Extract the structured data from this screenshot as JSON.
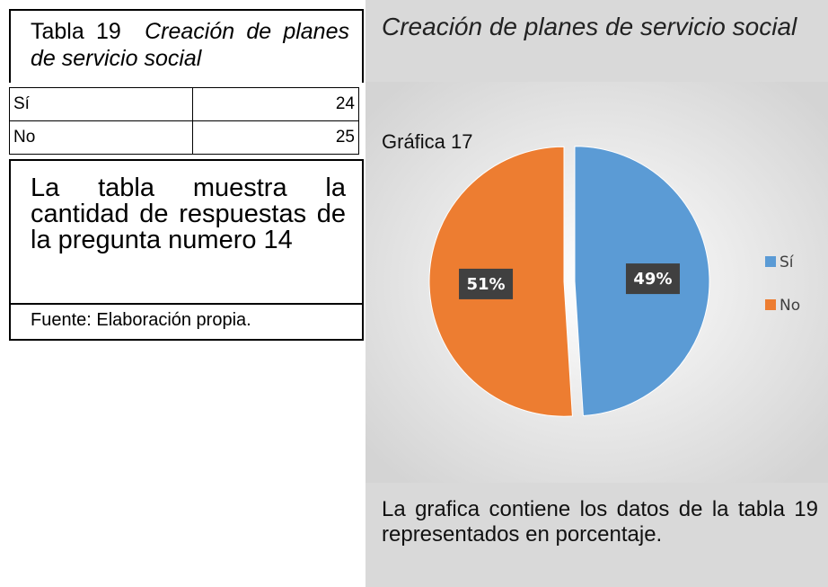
{
  "table": {
    "label": "Tabla 19",
    "title": "Creación de planes de servicio social",
    "rows": [
      [
        "Sí",
        24
      ],
      [
        "No",
        25
      ]
    ],
    "description": "La tabla muestra la cantidad de respuestas de la pregunta numero 14",
    "source": "Fuente: Elaboración propia."
  },
  "chart_data": {
    "type": "pie",
    "title": "Creación de planes de servicio social",
    "subtitle": "Gráfica 17",
    "categories": [
      "Sí",
      "No"
    ],
    "values": [
      49,
      51
    ],
    "value_labels": [
      "49%",
      "51%"
    ],
    "colors": [
      "#5b9bd5",
      "#ed7d31"
    ],
    "legend": "right"
  },
  "chart_note": "La grafica contiene los datos de la tabla 19 representados en porcentaje."
}
